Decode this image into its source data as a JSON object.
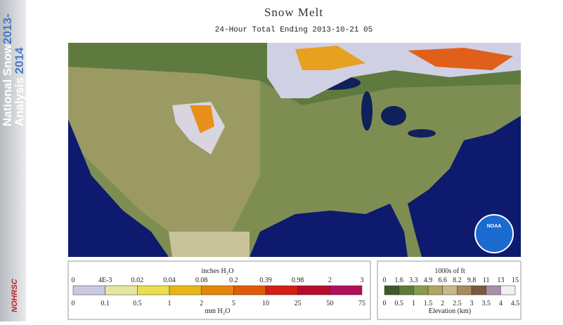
{
  "sidebar": {
    "line1": "National Snow",
    "years_top": "2013-",
    "line2": "Analysis",
    "years_bottom": "2014",
    "logo": "NOHRSC"
  },
  "header": {
    "title": "Snow Melt",
    "subtitle": "24-Hour Total Ending 2013-10-21 05"
  },
  "map": {
    "badge": "NOAA"
  },
  "melt_legend": {
    "top_unit": "inches H₂O",
    "top_labels": [
      "0",
      "4E-3",
      "0.02",
      "0.04",
      "0.08",
      "0.2",
      "0.39",
      "0.98",
      "2",
      "3"
    ],
    "bottom_labels": [
      "0",
      "0.1",
      "0.5",
      "1",
      "2",
      "5",
      "10",
      "25",
      "50",
      "75"
    ],
    "bottom_unit": "mm H₂O",
    "colors": [
      "#c8c8e0",
      "#e6e6a0",
      "#ecdc50",
      "#e8b418",
      "#e4860c",
      "#e05a0a",
      "#d41e14",
      "#b80c28",
      "#b0105a"
    ]
  },
  "elevation_legend": {
    "top_unit": "1000s of ft",
    "top_labels": [
      "0",
      "1.6",
      "3.3",
      "4.9",
      "6.6",
      "8.2",
      "9.8",
      "11",
      "13",
      "15"
    ],
    "bottom_labels": [
      "0",
      "0.5",
      "1",
      "1.5",
      "2",
      "2.5",
      "3",
      "3.5",
      "4",
      "4.5"
    ],
    "bottom_unit": "Elevation (km)",
    "colors": [
      "#3f5a2a",
      "#5e7a3a",
      "#8a9a50",
      "#b0a468",
      "#c8b888",
      "#a88a60",
      "#7a5a40",
      "#a890a8",
      "#f0f0f0"
    ]
  }
}
